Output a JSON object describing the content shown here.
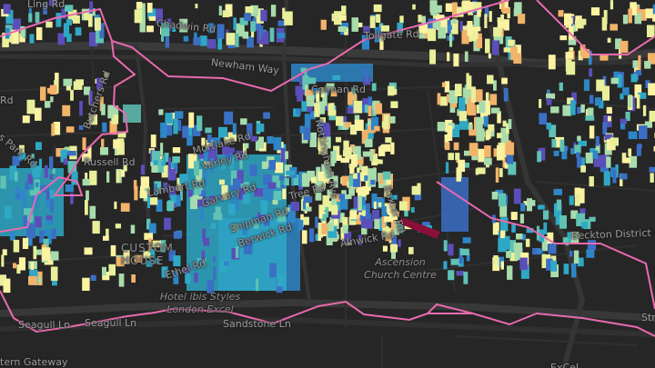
{
  "map": {
    "colors": {
      "background": "#262626",
      "road": "#353535",
      "major_road": "#3c3c3c",
      "boundary": "#e86aae",
      "highlight_building": "#8a0f3a",
      "building_scale": [
        "#fbf3a2",
        "#e9ef9a",
        "#a8dcac",
        "#5fc2b4",
        "#2fa8c5",
        "#2e86c7",
        "#3b6fc4",
        "#5a4fb8",
        "#f2b36a"
      ]
    },
    "road_labels": [
      {
        "text": "Ling Rd"
      },
      {
        "text": "Chadwin Rd"
      },
      {
        "text": "Newham Way"
      },
      {
        "text": "Tollgate Rd"
      },
      {
        "text": "Colman Rd"
      },
      {
        "text": "Nottingham Ave"
      },
      {
        "text": "Butchers Rd"
      },
      {
        "text": "Russell Rd"
      },
      {
        "text": "Mortlake Rd"
      },
      {
        "text": "Varley Rd"
      },
      {
        "text": "Lambert Rd"
      },
      {
        "text": "Garvary Rd"
      },
      {
        "text": "Tree Rd"
      },
      {
        "text": "Shipman Rd"
      },
      {
        "text": "Berwick Rd"
      },
      {
        "text": "Ethel Rd"
      },
      {
        "text": "Baxter Rd"
      },
      {
        "text": "Alnwick Rd"
      },
      {
        "text": "Seagull Ln"
      },
      {
        "text": "Seagull Ln"
      },
      {
        "text": "Sandstone Ln"
      },
      {
        "text": "Beckton District Park"
      },
      {
        "text": "tern Gateway"
      },
      {
        "text": "s Park Rd"
      },
      {
        "text": "Rd"
      },
      {
        "text": "ExCeL"
      },
      {
        "text": "Str"
      }
    ],
    "area_label": "CUSTOM HOUSE",
    "pois": [
      {
        "text": "Ascension Church Centre"
      },
      {
        "text": "Hotel ibis Styles London Excel"
      }
    ]
  }
}
